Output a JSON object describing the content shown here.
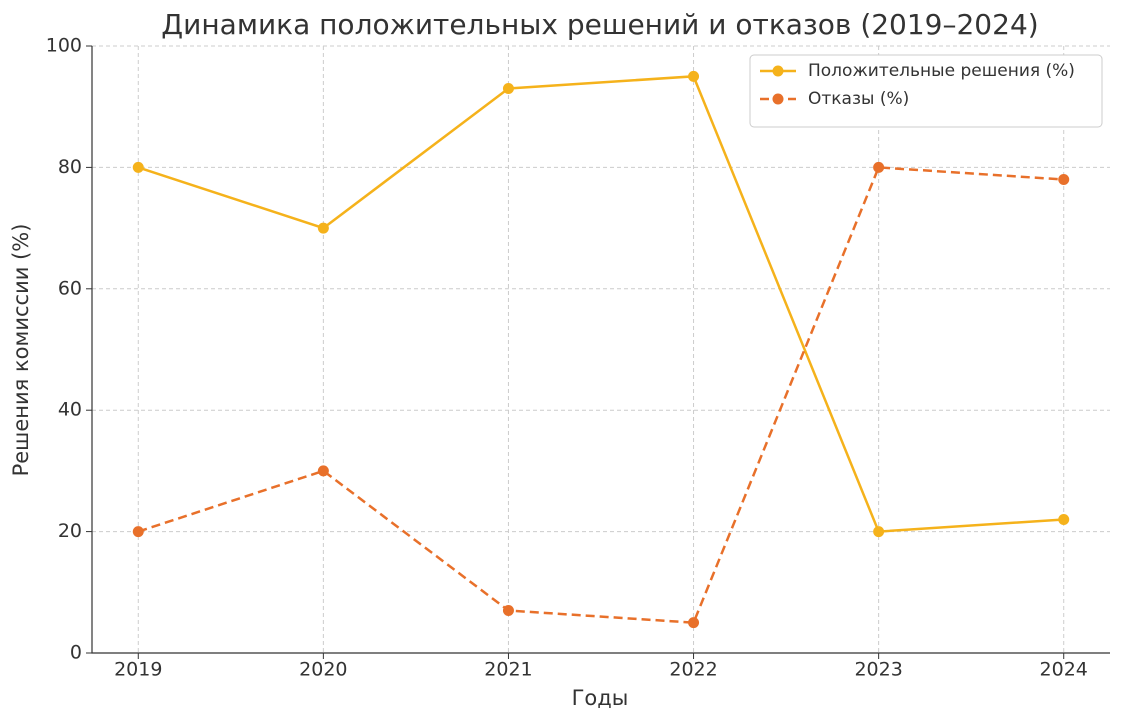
{
  "chart_data": {
    "type": "line",
    "title": "Динамика положительных решений и отказов (2019–2024)",
    "x_label": "Годы",
    "y_label": "Решения комиссии (%)",
    "x": [
      2019,
      2020,
      2021,
      2022,
      2023,
      2024
    ],
    "series": [
      {
        "name": "Положительные решения (%)",
        "color": "#f5b21b",
        "linestyle": "solid",
        "values": [
          80,
          70,
          93,
          95,
          20,
          22
        ]
      },
      {
        "name": "Отказы (%)",
        "color": "#e8702a",
        "linestyle": "dashed",
        "values": [
          20,
          30,
          7,
          5,
          80,
          78
        ]
      }
    ],
    "xlim": [
      2018.75,
      2024.25
    ],
    "xticks": [
      2019,
      2020,
      2021,
      2022,
      2023,
      2024
    ],
    "ylim": [
      0,
      100
    ],
    "yticks": [
      0,
      20,
      40,
      60,
      80,
      100
    ],
    "grid": true,
    "legend": "upper right"
  }
}
